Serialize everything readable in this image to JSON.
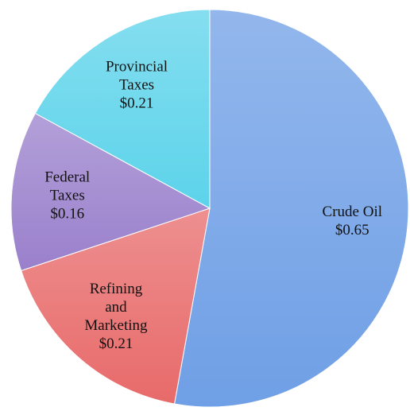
{
  "chart_data": {
    "type": "pie",
    "categories": [
      "Crude Oil",
      "Refining and Marketing",
      "Federal Taxes",
      "Provincial Taxes"
    ],
    "values": [
      0.65,
      0.21,
      0.16,
      0.21
    ],
    "value_labels": [
      "$0.65",
      "$0.21",
      "$0.16",
      "$0.21"
    ],
    "colors": [
      "#6f9fe6",
      "#e86a6a",
      "#9a80cc",
      "#5cd3ea"
    ]
  }
}
